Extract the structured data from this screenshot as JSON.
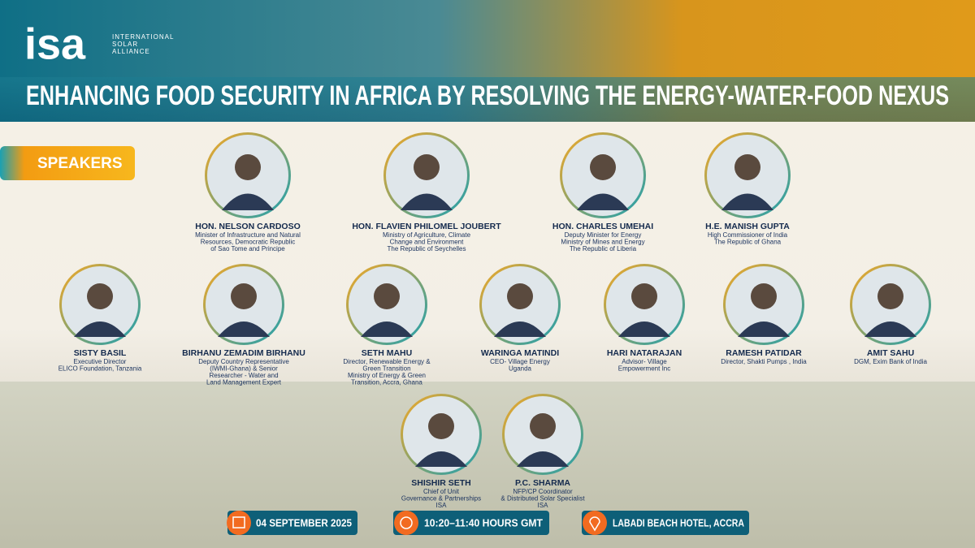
{
  "header": {
    "logo": "isa",
    "org_lines": [
      "INTERNATIONAL",
      "SOLAR",
      "ALLIANCE"
    ],
    "title": "ENHANCING FOOD SECURITY IN AFRICA BY RESOLVING THE ENERGY-WATER-FOOD NEXUS"
  },
  "section_label": "SPEAKERS",
  "speakers": [
    {
      "name": "HON. NELSON CARDOSO",
      "role": [
        "Minister of Infrastructure and Natural",
        "Resources, Democratic Republic",
        "of Sao Tome and Principe"
      ]
    },
    {
      "name": "HON. FLAVIEN PHILOMEL JOUBERT",
      "role": [
        "Ministry of Agriculture, Climate",
        "Change and Environment",
        "The Republic of Seychelles"
      ]
    },
    {
      "name": "HON. CHARLES UMEHAI",
      "role": [
        "Deputy Minister for Energy",
        "Ministry of Mines and Energy",
        "The Republic of Liberia"
      ]
    },
    {
      "name": "H.E. MANISH GUPTA",
      "role": [
        "High Commissioner of India",
        "The Republic of Ghana"
      ]
    },
    {
      "name": "SISTY BASIL",
      "role": [
        "Executive Director",
        "ELICO Foundation, Tanzania"
      ]
    },
    {
      "name": "BIRHANU ZEMADIM BIRHANU",
      "role": [
        "Deputy Country Representative",
        "(IWMI-Ghana) & Senior",
        "Researcher - Water and",
        "Land Management Expert"
      ]
    },
    {
      "name": "SETH MAHU",
      "role": [
        "Director, Renewable Energy &",
        "Green Transition",
        "Ministry of Energy & Green",
        "Transition, Accra, Ghana"
      ]
    },
    {
      "name": "WARINGA MATINDI",
      "role": [
        "CEO- Village Energy",
        "Uganda"
      ]
    },
    {
      "name": "HARI NATARAJAN",
      "role": [
        "Advisor- Village",
        "Empowerment Inc"
      ]
    },
    {
      "name": "RAMESH PATIDAR",
      "role": [
        "Director, Shakti Pumps , India"
      ]
    },
    {
      "name": "AMIT SAHU",
      "role": [
        "DGM, Exim Bank of India"
      ]
    },
    {
      "name": "SHISHIR SETH",
      "role": [
        "Chief of Unit",
        "Governance & Partnerships",
        "ISA"
      ]
    },
    {
      "name": "P.C. SHARMA",
      "role": [
        "NFP/CP Coordinator",
        "& Distributed Solar Specialist",
        "ISA"
      ]
    }
  ],
  "footer": {
    "date": "04 SEPTEMBER 2025",
    "time": "10:20–11:40 HOURS GMT",
    "venue": "LABADI BEACH HOTEL, ACCRA"
  }
}
